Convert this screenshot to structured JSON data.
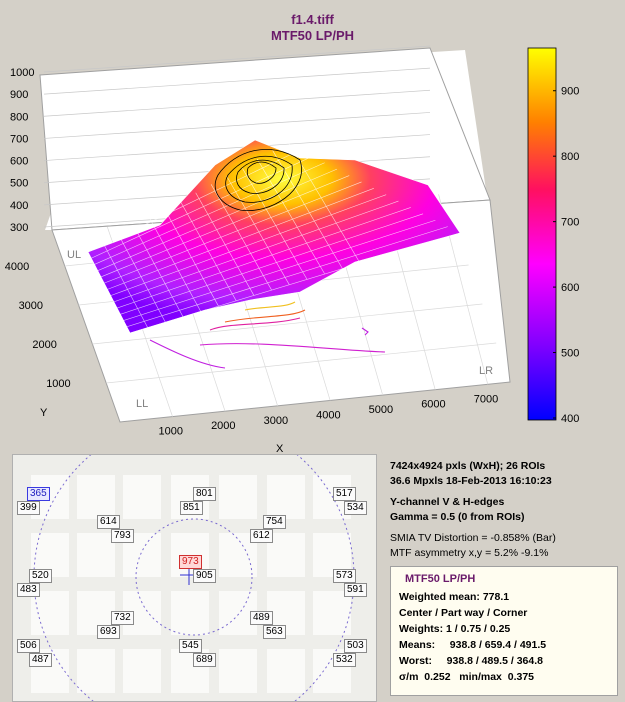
{
  "title": "f1.4.tiff",
  "subtitle": "MTF50 LP/PH",
  "chart_data": {
    "type": "surface",
    "title": "f1.4.tiff",
    "subtitle": "MTF50 LP/PH",
    "xlabel": "X",
    "ylabel": "Y",
    "x_ticks": [
      1000,
      2000,
      3000,
      4000,
      5000,
      6000,
      7000
    ],
    "y_ticks": [
      1000,
      2000,
      3000,
      4000
    ],
    "z_ticks": [
      300,
      400,
      500,
      600,
      700,
      800,
      900,
      1000
    ],
    "xlim": [
      0,
      7424
    ],
    "ylim": [
      0,
      4924
    ],
    "zlim": [
      300,
      1000
    ],
    "colorbar_ticks": [
      400,
      500,
      600,
      700,
      800,
      900
    ],
    "colorbar_range": [
      400,
      950
    ],
    "corner_labels": [
      "UL",
      "LL",
      "LR"
    ]
  },
  "roi_labels": [
    {
      "text": "365",
      "highlight": "blue"
    },
    {
      "text": "399"
    },
    {
      "text": "801"
    },
    {
      "text": "851"
    },
    {
      "text": "517"
    },
    {
      "text": "534"
    },
    {
      "text": "614"
    },
    {
      "text": "793"
    },
    {
      "text": "754"
    },
    {
      "text": "612"
    },
    {
      "text": "973",
      "highlight": "red"
    },
    {
      "text": "905"
    },
    {
      "text": "520"
    },
    {
      "text": "483"
    },
    {
      "text": "573"
    },
    {
      "text": "591"
    },
    {
      "text": "732"
    },
    {
      "text": "693"
    },
    {
      "text": "489"
    },
    {
      "text": "563"
    },
    {
      "text": "506"
    },
    {
      "text": "487"
    },
    {
      "text": "545"
    },
    {
      "text": "689"
    },
    {
      "text": "503"
    },
    {
      "text": "532"
    }
  ],
  "info": {
    "line1": "7424x4924 pxls (WxH);   26 ROIs",
    "line2": "36.6 Mpxls    18-Feb-2013 16:10:23",
    "line3": "Y-channel   V & H-edges",
    "line4": "Gamma = 0.5  (0 from ROIs)",
    "line5": "SMIA TV Distortion = -0.858%  (Bar)",
    "line6": "MTF asymmetry x,y = 5.2%  -9.1%"
  },
  "summary": {
    "header": "MTF50 LP/PH",
    "weighted_mean": "Weighted mean: 778.1",
    "cpc": "Center / Part way / Corner",
    "weights": "Weights: 1 / 0.75 / 0.25",
    "means": "Means:     938.8 / 659.4 / 491.5",
    "worst": "Worst:     938.8 / 489.5 / 364.8",
    "sigma": "σ/m  0.252   min/max  0.375"
  }
}
